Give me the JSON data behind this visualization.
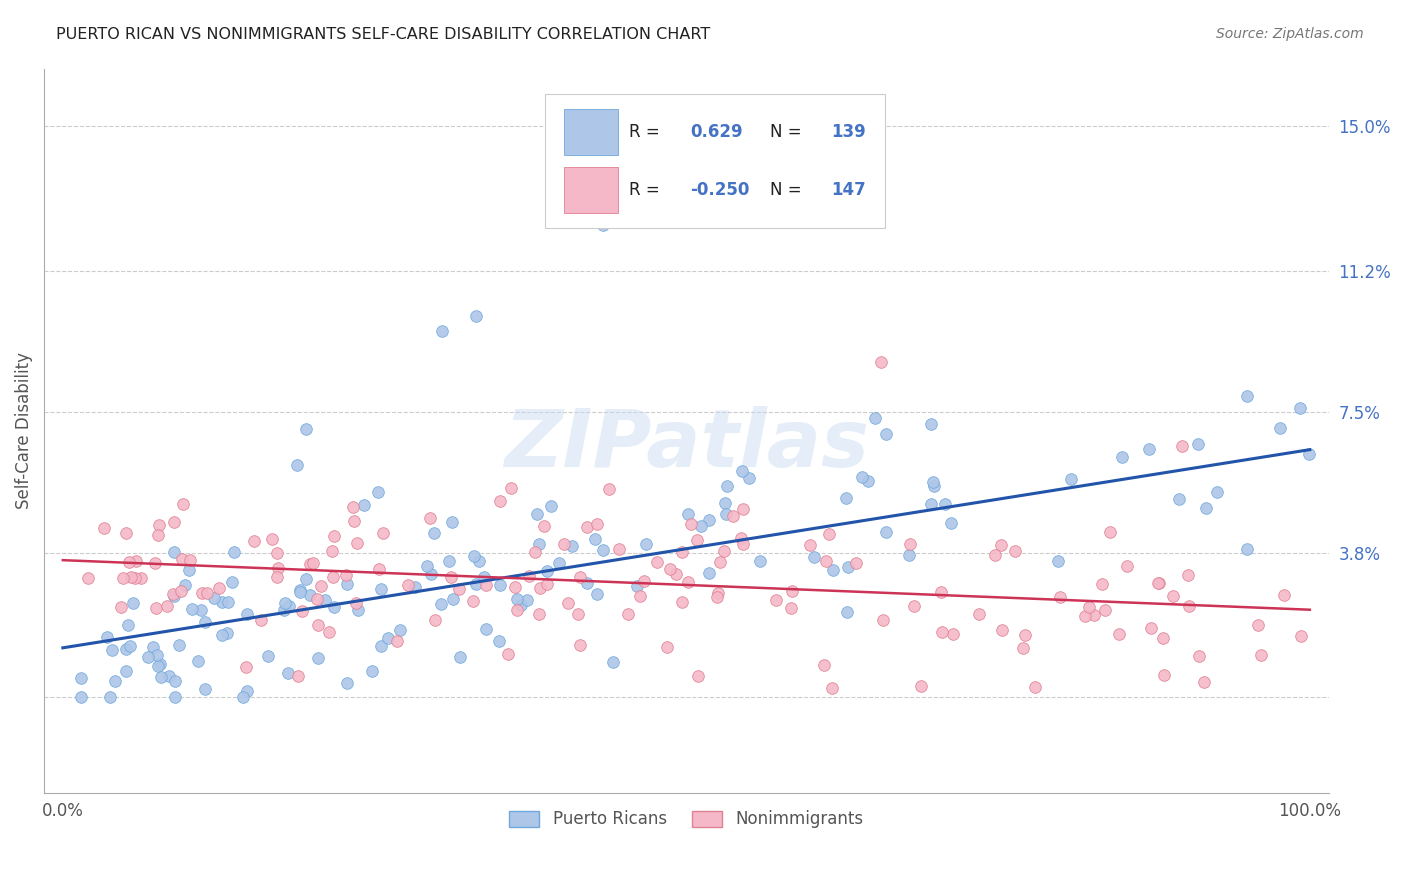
{
  "title": "PUERTO RICAN VS NONIMMIGRANTS SELF-CARE DISABILITY CORRELATION CHART",
  "source": "Source: ZipAtlas.com",
  "ylabel": "Self-Care Disability",
  "yticks": [
    0.0,
    0.038,
    0.075,
    0.112,
    0.15
  ],
  "ytick_labels": [
    "",
    "3.8%",
    "7.5%",
    "11.2%",
    "15.0%"
  ],
  "blue_R": "0.629",
  "blue_N": "139",
  "pink_R": "-0.250",
  "pink_N": "147",
  "blue_scatter_face": "#aec6e8",
  "blue_scatter_edge": "#6fa8dc",
  "pink_scatter_face": "#f4b8c8",
  "pink_scatter_edge": "#e08090",
  "blue_line_color": "#2255aa",
  "pink_line_color": "#cc3355",
  "watermark": "ZIPatlas",
  "legend_labels": [
    "Puerto Ricans",
    "Nonimmigrants"
  ],
  "blue_intercept": 0.013,
  "blue_slope": 0.052,
  "pink_intercept": 0.036,
  "pink_slope": -0.013,
  "background_color": "#ffffff",
  "grid_color": "#cccccc",
  "title_color": "#222222",
  "right_ytick_color": "#4472c4",
  "value_color": "#4472c4",
  "black_text": "#222222"
}
